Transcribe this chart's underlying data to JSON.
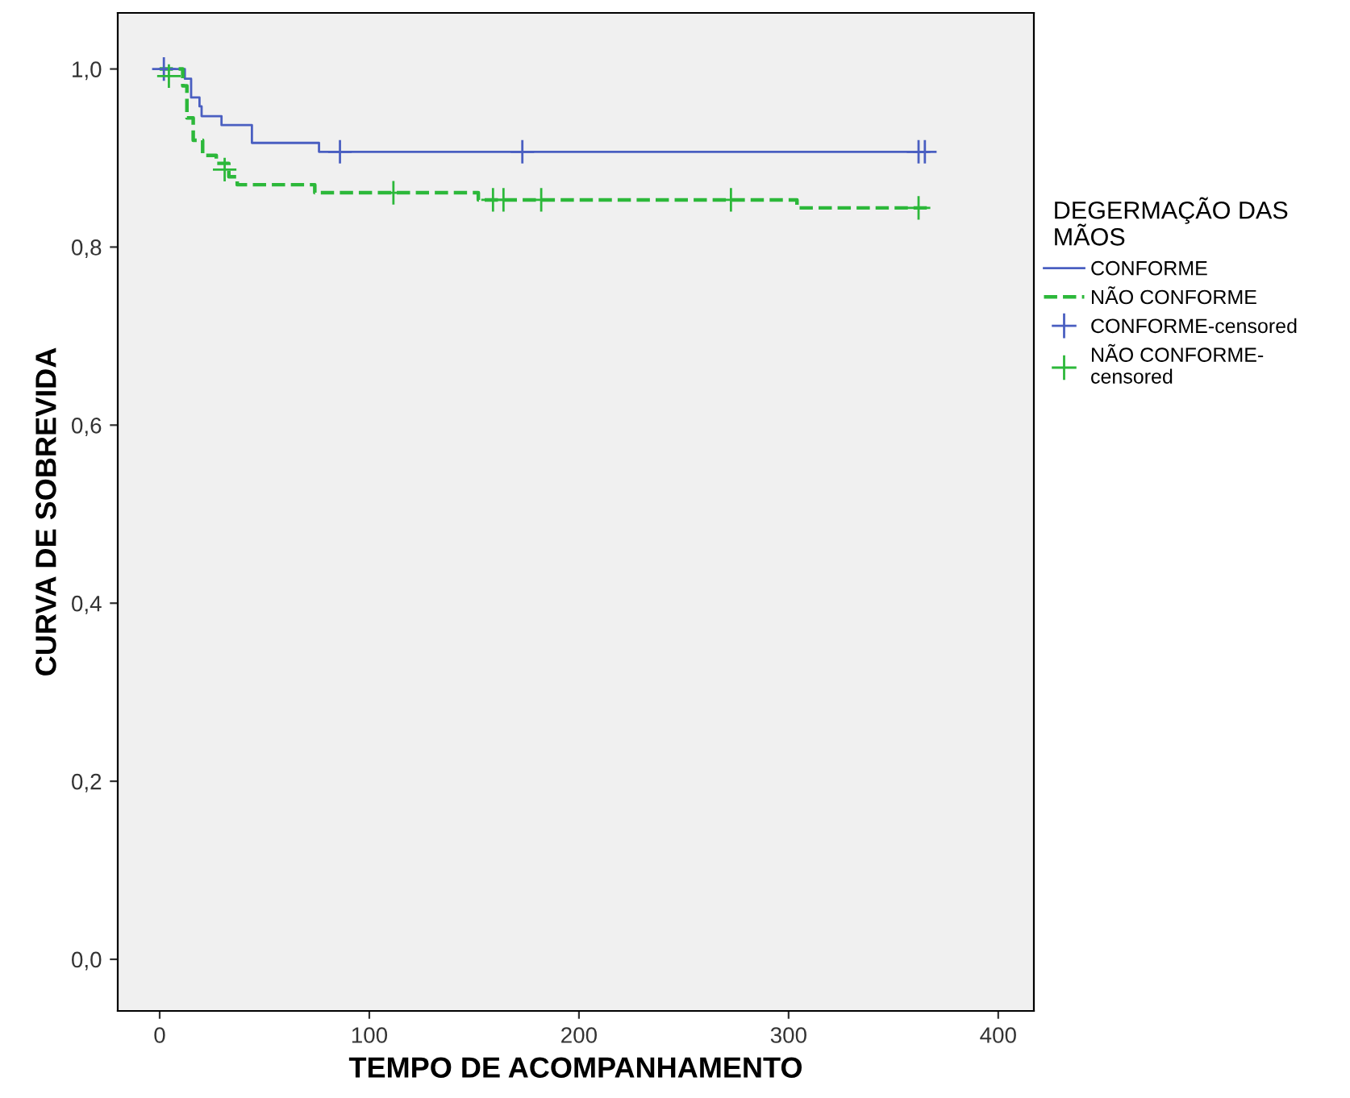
{
  "chart_data": {
    "type": "step",
    "xlabel": "TEMPO DE ACOMPANHAMENTO",
    "ylabel": "CURVA DE SOBREVIDA",
    "legend_title": "DEGERMAÇÃO DAS MÃOS",
    "legend": "right",
    "grid": false,
    "xlim": [
      -20,
      417
    ],
    "ylim": [
      -0.058,
      1.063
    ],
    "xticks": [
      0,
      100,
      200,
      300,
      400
    ],
    "yticks": [
      {
        "value": 0.0,
        "label": "0,0"
      },
      {
        "value": 0.2,
        "label": "0,2"
      },
      {
        "value": 0.4,
        "label": "0,4"
      },
      {
        "value": 0.6,
        "label": "0,6"
      },
      {
        "value": 0.8,
        "label": "0,8"
      },
      {
        "value": 1.0,
        "label": "1,0"
      }
    ],
    "series": [
      {
        "name": "CONFORME",
        "color": "#4a5fc1",
        "line_style": "solid",
        "x": [
          0,
          12,
          15,
          19,
          20,
          29.5,
          44,
          76,
          366
        ],
        "values": [
          1.0,
          0.989,
          0.968,
          0.958,
          0.947,
          0.937,
          0.917,
          0.907,
          0.907
        ]
      },
      {
        "name": "NÃO CONFORME",
        "color": "#2cb83a",
        "line_style": "dashed",
        "x": [
          0,
          11,
          13,
          16,
          20.5,
          27,
          33,
          37,
          74,
          152,
          304,
          366
        ],
        "values": [
          1.0,
          0.981,
          0.945,
          0.92,
          0.903,
          0.894,
          0.879,
          0.87,
          0.861,
          0.853,
          0.844,
          0.844
        ]
      },
      {
        "name": "CONFORME-censored",
        "type": "scatter",
        "color": "#4a5fc1",
        "marker": "cross",
        "x": [
          2,
          86,
          173,
          362,
          365
        ],
        "values": [
          1.0,
          0.907,
          0.907,
          0.907,
          0.907
        ]
      },
      {
        "name": "NÃO CONFORME-censored",
        "type": "scatter",
        "color": "#2cb83a",
        "marker": "cross",
        "x": [
          4.4,
          31,
          111.5,
          159,
          164,
          182,
          272.5,
          362
        ],
        "values": [
          0.992,
          0.887,
          0.861,
          0.853,
          0.853,
          0.853,
          0.853,
          0.844
        ]
      }
    ]
  }
}
